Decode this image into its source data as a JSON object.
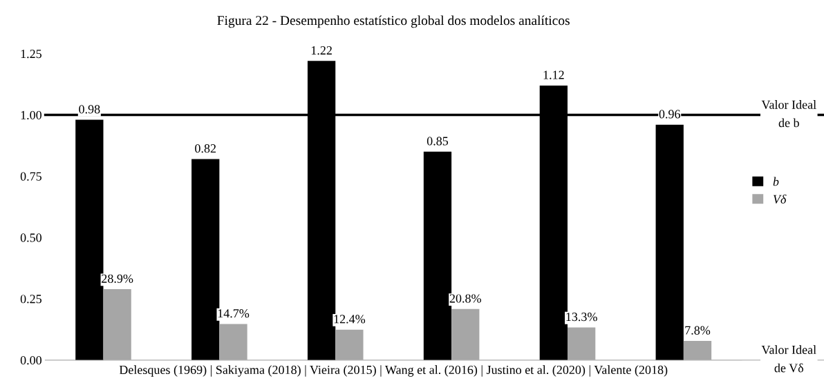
{
  "chart_data": {
    "type": "bar",
    "title": "Figura 22 - Desempenho estatístico global dos modelos analíticos",
    "xlabel": "Delesques (1969) | Sakiyama (2018) | Vieira (2015) | Wang et al. (2016) | Justino et al. (2020) | Valente (2018)",
    "categories": [
      null,
      null,
      null,
      null,
      null,
      null
    ],
    "series": [
      {
        "name": "b",
        "color": "#000000",
        "values": [
          0.98,
          0.82,
          1.22,
          0.85,
          1.12,
          0.96
        ],
        "value_labels": [
          "0.98",
          "0.82",
          "1.22",
          "0.85",
          "1.12",
          "0.96"
        ]
      },
      {
        "name": "Vδ",
        "color": "#a6a6a6",
        "values": [
          0.289,
          0.147,
          0.124,
          0.208,
          0.133,
          0.078
        ],
        "value_labels": [
          "28.9%",
          "14.7%",
          "12.4%",
          "20.8%",
          "13.3%",
          "7.8%"
        ]
      }
    ],
    "ylim": [
      0,
      1.25
    ],
    "yticks": [
      {
        "value": 0,
        "label": "0.00"
      },
      {
        "value": 0.25,
        "label": "0.25"
      },
      {
        "value": 0.5,
        "label": "0.50"
      },
      {
        "value": 0.75,
        "label": "0.75"
      },
      {
        "value": 1,
        "label": "1.00"
      },
      {
        "value": 1.25,
        "label": "1.25"
      }
    ],
    "ref_lines": [
      {
        "axis": "y",
        "value": 1,
        "label": "Valor Ideal de b",
        "color": "#000000"
      },
      {
        "axis": "y",
        "value": 0,
        "label": "Valor Ideal de Vδ",
        "color": "#bfbfbf"
      }
    ],
    "grid": false,
    "legend": "right"
  }
}
